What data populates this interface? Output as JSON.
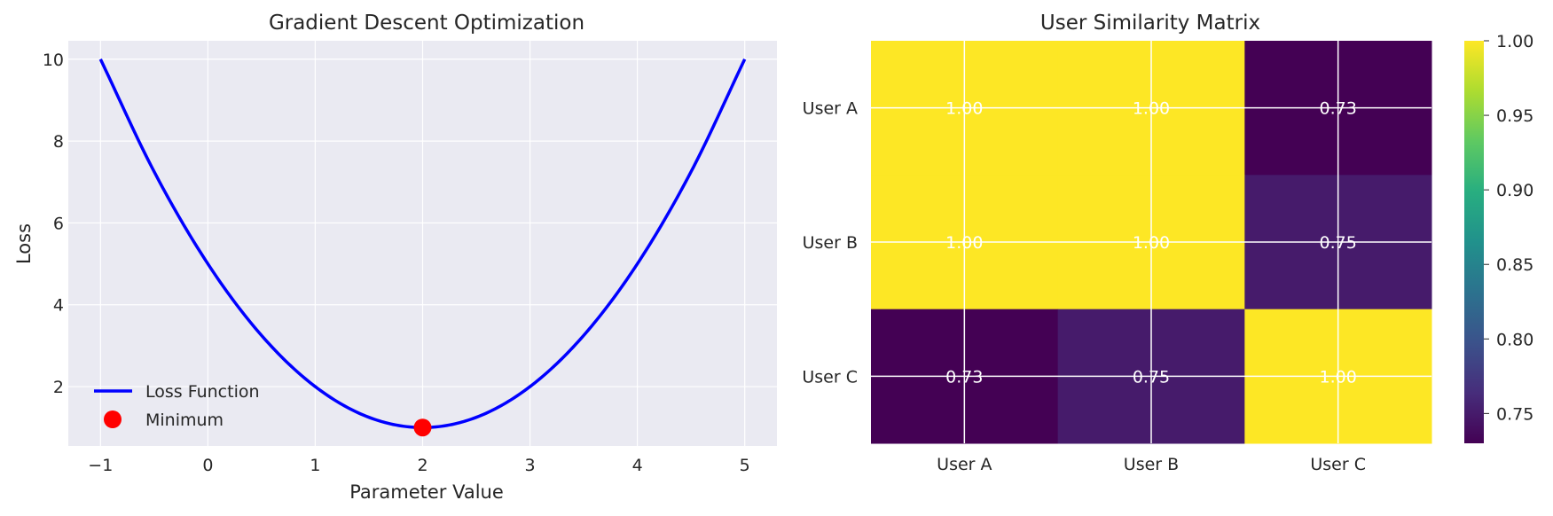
{
  "chart_data": [
    {
      "type": "line",
      "title": "Gradient Descent Optimization",
      "xlabel": "Parameter Value",
      "ylabel": "Loss",
      "xlim": [
        -1.3,
        5.3
      ],
      "ylim": [
        0.55,
        10.45
      ],
      "xticks": [
        -1,
        0,
        1,
        2,
        3,
        4,
        5
      ],
      "xtick_labels": [
        "−1",
        "0",
        "1",
        "2",
        "3",
        "4",
        "5"
      ],
      "yticks": [
        2,
        4,
        6,
        8,
        10
      ],
      "ytick_labels": [
        "2",
        "4",
        "6",
        "8",
        "10"
      ],
      "grid": true,
      "legend_position": "lower-left",
      "series": [
        {
          "name": "Loss Function",
          "kind": "line",
          "color": "#0000ff",
          "x": [
            -1,
            -0.5,
            0,
            0.5,
            1,
            1.5,
            2,
            2.5,
            3,
            3.5,
            4,
            4.5,
            5
          ],
          "y": [
            10,
            7.25,
            5,
            3.25,
            2,
            1.25,
            1,
            1.25,
            2,
            3.25,
            5,
            7.25,
            10
          ]
        },
        {
          "name": "Minimum",
          "kind": "scatter",
          "color": "#ff0000",
          "x": [
            2
          ],
          "y": [
            1
          ]
        }
      ]
    },
    {
      "type": "heatmap",
      "title": "User Similarity Matrix",
      "x_categories": [
        "User A",
        "User B",
        "User C"
      ],
      "y_categories": [
        "User A",
        "User B",
        "User C"
      ],
      "values": [
        [
          1.0,
          1.0,
          0.73
        ],
        [
          1.0,
          1.0,
          0.75
        ],
        [
          0.73,
          0.75,
          1.0
        ]
      ],
      "cell_labels": [
        [
          "1.00",
          "1.00",
          "0.73"
        ],
        [
          "1.00",
          "1.00",
          "0.75"
        ],
        [
          "0.73",
          "0.75",
          "1.00"
        ]
      ],
      "colormap": "viridis",
      "colorbar": {
        "range": [
          0.73,
          1.0
        ],
        "ticks": [
          0.75,
          0.8,
          0.85,
          0.9,
          0.95,
          1.0
        ],
        "tick_labels": [
          "0.75",
          "0.80",
          "0.85",
          "0.90",
          "0.95",
          "1.00"
        ]
      },
      "grid": true
    }
  ]
}
